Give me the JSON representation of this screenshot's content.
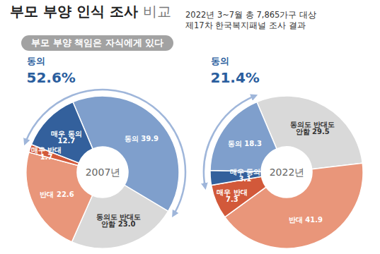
{
  "title": "부모 부양 인식 조사 비교",
  "subtitle": "부모 부양 책임은 자식에게 있다",
  "note": [
    "2022년 3~7월 총 7,865가구 대상",
    "제17차 한국복지패널 조사 결과"
  ],
  "chart_data": [
    {
      "type": "donut",
      "title": "2007년",
      "categories": [
        "동의",
        "동의도 반대도 안함",
        "반대",
        "매우 반대",
        "매우 동의"
      ],
      "values": [
        39.9,
        23.0,
        22.6,
        1.7,
        12.7
      ],
      "value_labels": [
        "39.9",
        "23.0",
        "22.6",
        "1.7",
        "12.7"
      ],
      "colors": [
        "#7f9fcc",
        "#d9d9d9",
        "#e9967a",
        "#d2593a",
        "#33609c"
      ],
      "data_labels": true,
      "summary": {
        "label": "동의",
        "value": 52.6,
        "value_label": "52.6%",
        "slices": [
          "매우 동의",
          "동의"
        ]
      }
    },
    {
      "type": "donut",
      "title": "2022년",
      "categories": [
        "동의도 반대도 안함",
        "반대",
        "매우 반대",
        "매우 동의",
        "동의"
      ],
      "values": [
        29.5,
        41.9,
        7.3,
        3.1,
        18.3
      ],
      "value_labels": [
        "29.5",
        "41.9",
        "7.3",
        "3.1",
        "18.3"
      ],
      "colors": [
        "#d9d9d9",
        "#e9967a",
        "#d2593a",
        "#33609c",
        "#7f9fcc"
      ],
      "data_labels": true,
      "summary": {
        "label": "동의",
        "value": 21.4,
        "value_label": "21.4%",
        "slices": [
          "매우 동의",
          "동의"
        ]
      }
    }
  ]
}
